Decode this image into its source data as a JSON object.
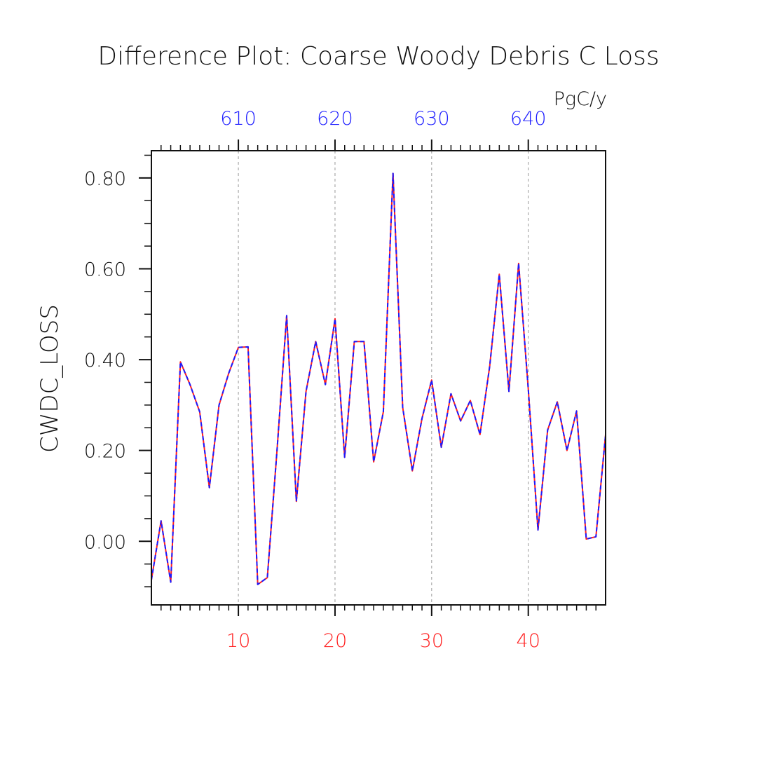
{
  "chart_data": {
    "type": "line",
    "title": "Difference Plot: Coarse Woody Debris C Loss",
    "units": "PgC/y",
    "ylabel": "CWDC_LOSS",
    "xlabel": "",
    "xlim": [
      1,
      48
    ],
    "ylim": [
      -0.14,
      0.86
    ],
    "yticks": [
      0.0,
      0.2,
      0.4,
      0.6,
      0.8
    ],
    "ytick_labels": [
      "0.00",
      "0.20",
      "0.40",
      "0.60",
      "0.80"
    ],
    "xticks_bottom": [
      10,
      20,
      30,
      40
    ],
    "xtick_labels_bottom": [
      "10",
      "20",
      "30",
      "40"
    ],
    "xtick_labels_top": [
      "610",
      "620",
      "630",
      "640"
    ],
    "grid": "vertical dashed at major x ticks",
    "colors": {
      "series_a": "#ff2020",
      "series_b": "#1a1aff",
      "bottom_axis_labels": "#ff2020",
      "top_axis_labels": "#2020ff",
      "grid": "#999999"
    },
    "x": [
      1,
      2,
      3,
      4,
      5,
      6,
      7,
      8,
      9,
      10,
      11,
      12,
      13,
      14,
      15,
      16,
      17,
      18,
      19,
      20,
      21,
      22,
      23,
      24,
      25,
      26,
      27,
      28,
      29,
      30,
      31,
      32,
      33,
      34,
      35,
      36,
      37,
      38,
      39,
      40,
      41,
      42,
      43,
      44,
      45,
      46,
      47,
      48
    ],
    "series": [
      {
        "values": [
          -0.085,
          0.045,
          -0.09,
          0.395,
          0.345,
          0.285,
          0.118,
          0.3,
          0.37,
          0.427,
          0.428,
          -0.095,
          -0.08,
          0.2,
          0.497,
          0.088,
          0.33,
          0.44,
          0.345,
          0.49,
          0.185,
          0.44,
          0.44,
          0.175,
          0.285,
          0.81,
          0.295,
          0.155,
          0.27,
          0.355,
          0.207,
          0.325,
          0.265,
          0.31,
          0.235,
          0.385,
          0.588,
          0.33,
          0.612,
          0.335,
          0.025,
          0.245,
          0.307,
          0.2,
          0.287,
          0.005,
          0.01,
          0.235
        ]
      },
      {
        "values": [
          -0.085,
          0.045,
          -0.09,
          0.395,
          0.345,
          0.285,
          0.118,
          0.3,
          0.37,
          0.427,
          0.428,
          -0.095,
          -0.08,
          0.2,
          0.497,
          0.088,
          0.33,
          0.44,
          0.345,
          0.49,
          0.185,
          0.44,
          0.44,
          0.175,
          0.285,
          0.81,
          0.295,
          0.155,
          0.27,
          0.355,
          0.207,
          0.325,
          0.265,
          0.31,
          0.235,
          0.385,
          0.588,
          0.33,
          0.612,
          0.335,
          0.025,
          0.245,
          0.307,
          0.2,
          0.287,
          0.005,
          0.01,
          0.235
        ]
      }
    ]
  }
}
